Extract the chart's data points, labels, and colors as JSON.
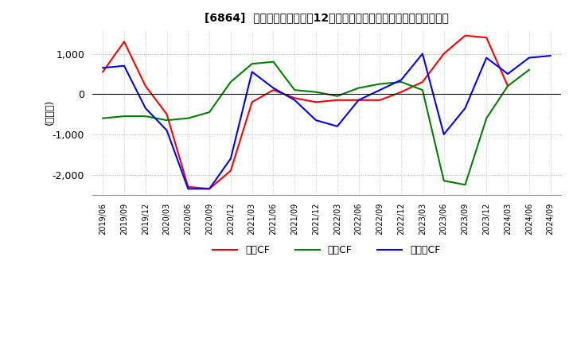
{
  "title": "[6864]  キャッシュフローの12か月移動合計の対前年同期増減額の推移",
  "ylabel": "(百万円)",
  "ylim": [
    -2500,
    1600
  ],
  "yticks": [
    -2000,
    -1000,
    0,
    1000
  ],
  "x_labels": [
    "2019/06",
    "2019/09",
    "2019/12",
    "2020/03",
    "2020/06",
    "2020/09",
    "2020/12",
    "2021/03",
    "2021/06",
    "2021/09",
    "2021/12",
    "2022/03",
    "2022/06",
    "2022/09",
    "2022/12",
    "2023/03",
    "2023/06",
    "2023/09",
    "2023/12",
    "2024/03",
    "2024/06",
    "2024/09"
  ],
  "operating_cf": [
    550,
    1300,
    200,
    -500,
    -2300,
    -2350,
    -1900,
    -200,
    100,
    -100,
    -200,
    -150,
    -150,
    -150,
    50,
    300,
    1000,
    1450,
    1400,
    200,
    null,
    null
  ],
  "investing_cf": [
    -600,
    -550,
    -550,
    -650,
    -600,
    -450,
    300,
    750,
    800,
    100,
    50,
    -50,
    150,
    250,
    300,
    100,
    -2150,
    -2250,
    -600,
    200,
    600,
    null
  ],
  "free_cf": [
    650,
    700,
    -350,
    -900,
    -2350,
    -2350,
    -1600,
    550,
    150,
    -150,
    -650,
    -800,
    -150,
    100,
    350,
    1000,
    -1000,
    -350,
    900,
    500,
    900,
    950
  ],
  "operating_color": "#ff0000",
  "investing_color": "#008000",
  "free_cf_color": "#0000ff",
  "background_color": "#ffffff",
  "grid_color": "#b0b0b0",
  "legend_labels": [
    "営業CF",
    "投資CF",
    "フリーCF"
  ]
}
